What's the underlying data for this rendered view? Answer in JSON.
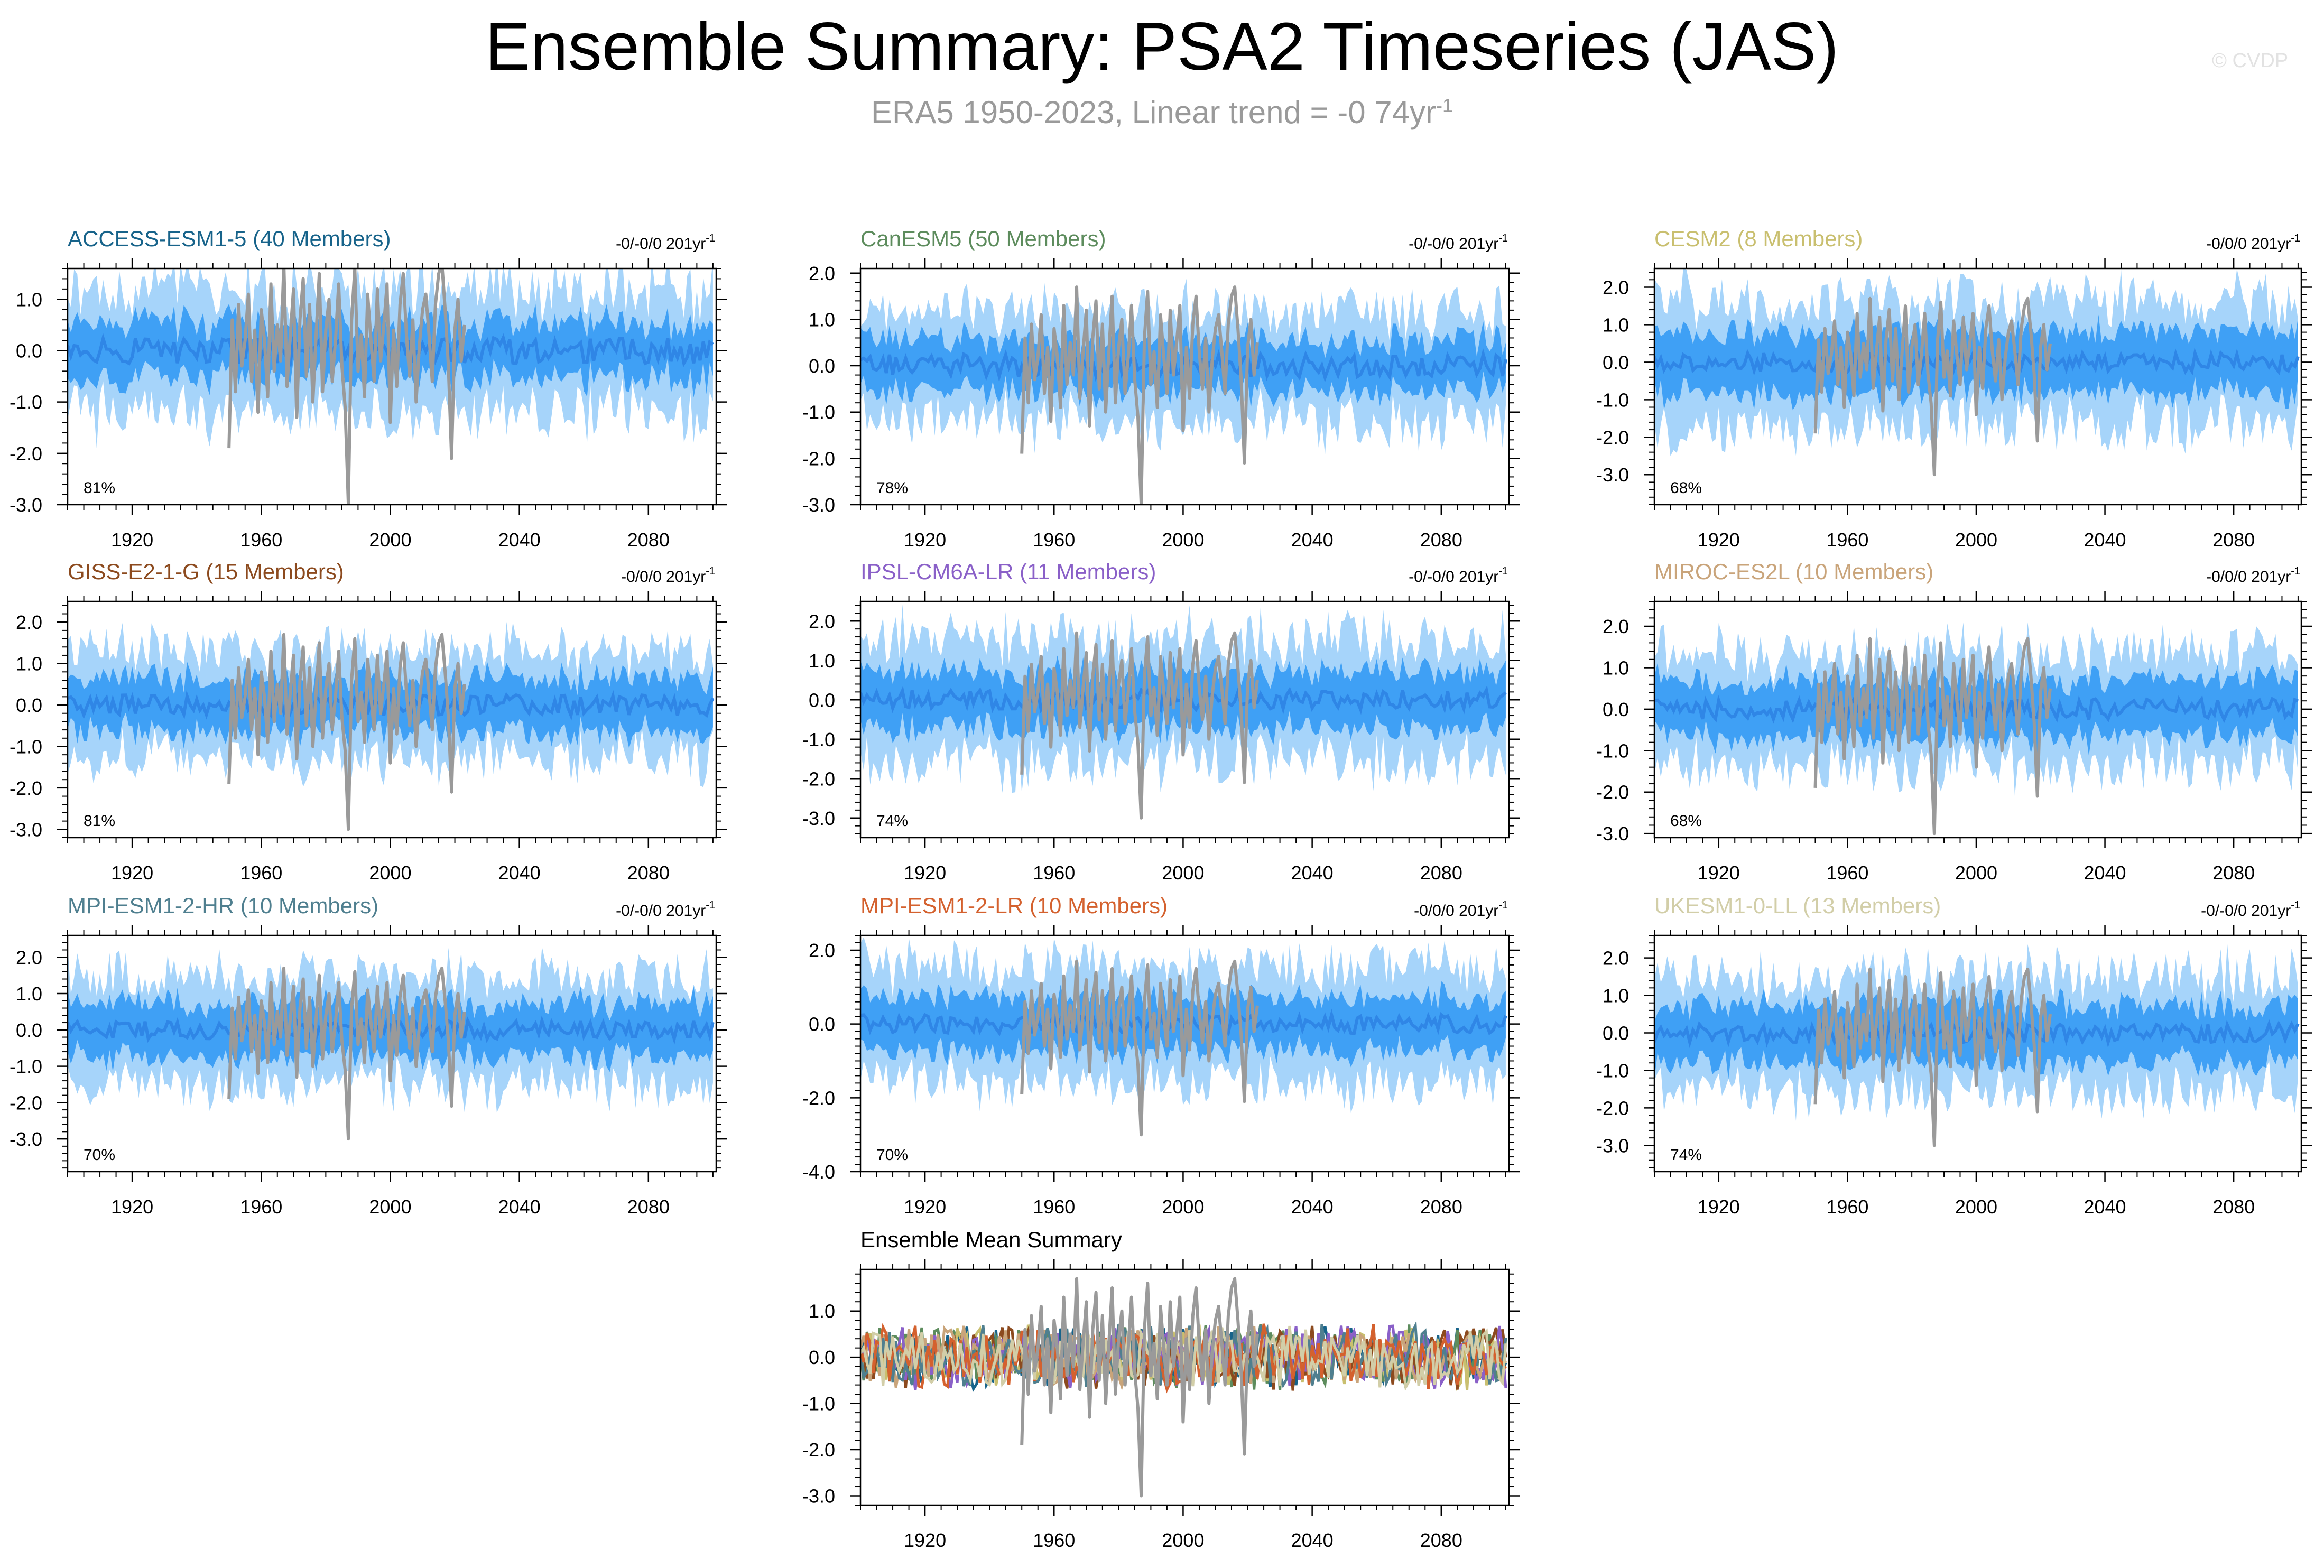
{
  "title": "Ensemble Summary: PSA2 Timeseries (JAS)",
  "subtitle": {
    "text": "ERA5 1950-2023, Linear trend = -0 74yr",
    "superscript": "-1"
  },
  "watermark": "© CVDP",
  "colors": {
    "outer_band": "#a6d4fa",
    "inner_band": "#3fa0f5",
    "ensemble_mean": "#2f86e6",
    "observations": "#9a9a9a",
    "frame": "#000000"
  },
  "chart_data": [
    {
      "type": "area",
      "title": "ACCESS-ESM1-5 (40 Members)",
      "title_color": "#17638a",
      "trend_text": "-0/-0/0 201yr",
      "trend_superscript": "-1",
      "percent_label": "81%",
      "xlim": [
        1900,
        2101
      ],
      "ylim": [
        -3.0,
        1.6
      ],
      "yticks": [
        "-3.0",
        "-2.0",
        "-1.0",
        "0.0",
        "1.0"
      ],
      "xticks": [
        "1920",
        "1960",
        "2000",
        "2040",
        "2080"
      ],
      "outer_half_width": 1.3,
      "inner_half_width": 0.6
    },
    {
      "type": "area",
      "title": "CanESM5 (50 Members)",
      "title_color": "#5d8c5d",
      "trend_text": "-0/-0/0 201yr",
      "trend_superscript": "-1",
      "percent_label": "78%",
      "xlim": [
        1900,
        2101
      ],
      "ylim": [
        -3.0,
        2.1
      ],
      "yticks": [
        "-3.0",
        "-2.0",
        "-1.0",
        "0.0",
        "1.0",
        "2.0"
      ],
      "xticks": [
        "1920",
        "1960",
        "2000",
        "2040",
        "2080"
      ],
      "outer_half_width": 1.3,
      "inner_half_width": 0.6
    },
    {
      "type": "area",
      "title": "CESM2 (8 Members)",
      "title_color": "#c9bf6f",
      "trend_text": "-0/0/0 201yr",
      "trend_superscript": "-1",
      "percent_label": "68%",
      "xlim": [
        1900,
        2101
      ],
      "ylim": [
        -3.8,
        2.5
      ],
      "yticks": [
        "-3.0",
        "-2.0",
        "-1.0",
        "0.0",
        "1.0",
        "2.0"
      ],
      "xticks": [
        "1920",
        "1960",
        "2000",
        "2040",
        "2080"
      ],
      "outer_half_width": 1.8,
      "inner_half_width": 0.9
    },
    {
      "type": "area",
      "title": "GISS-E2-1-G (15 Members)",
      "title_color": "#8c4a1e",
      "trend_text": "-0/0/0 201yr",
      "trend_superscript": "-1",
      "percent_label": "81%",
      "xlim": [
        1900,
        2101
      ],
      "ylim": [
        -3.2,
        2.5
      ],
      "yticks": [
        "-3.0",
        "-2.0",
        "-1.0",
        "0.0",
        "1.0",
        "2.0"
      ],
      "xticks": [
        "1920",
        "1960",
        "2000",
        "2040",
        "2080"
      ],
      "outer_half_width": 1.4,
      "inner_half_width": 0.7
    },
    {
      "type": "area",
      "title": "IPSL-CM6A-LR (11 Members)",
      "title_color": "#8a60c8",
      "trend_text": "-0/-0/0 201yr",
      "trend_superscript": "-1",
      "percent_label": "74%",
      "xlim": [
        1900,
        2101
      ],
      "ylim": [
        -3.5,
        2.5
      ],
      "yticks": [
        "-3.0",
        "-2.0",
        "-1.0",
        "0.0",
        "1.0",
        "2.0"
      ],
      "xticks": [
        "1920",
        "1960",
        "2000",
        "2040",
        "2080"
      ],
      "outer_half_width": 1.7,
      "inner_half_width": 0.8
    },
    {
      "type": "area",
      "title": "MIROC-ES2L (10 Members)",
      "title_color": "#c9a47a",
      "trend_text": "-0/0/0 201yr",
      "trend_superscript": "-1",
      "percent_label": "68%",
      "xlim": [
        1900,
        2101
      ],
      "ylim": [
        -3.1,
        2.6
      ],
      "yticks": [
        "-3.0",
        "-2.0",
        "-1.0",
        "0.0",
        "1.0",
        "2.0"
      ],
      "xticks": [
        "1920",
        "1960",
        "2000",
        "2040",
        "2080"
      ],
      "outer_half_width": 1.5,
      "inner_half_width": 0.75
    },
    {
      "type": "area",
      "title": "MPI-ESM1-2-HR (10 Members)",
      "title_color": "#4f7f8f",
      "trend_text": "-0/-0/0 201yr",
      "trend_superscript": "-1",
      "percent_label": "70%",
      "xlim": [
        1900,
        2101
      ],
      "ylim": [
        -3.9,
        2.6
      ],
      "yticks": [
        "-3.0",
        "-2.0",
        "-1.0",
        "0.0",
        "1.0",
        "2.0"
      ],
      "xticks": [
        "1920",
        "1960",
        "2000",
        "2040",
        "2080"
      ],
      "outer_half_width": 1.6,
      "inner_half_width": 0.8
    },
    {
      "type": "area",
      "title": "MPI-ESM1-2-LR (10 Members)",
      "title_color": "#d4612e",
      "trend_text": "-0/0/0 201yr",
      "trend_superscript": "-1",
      "percent_label": "70%",
      "xlim": [
        1900,
        2101
      ],
      "ylim": [
        -4.0,
        2.4
      ],
      "yticks": [
        "-4.0",
        "-2.0",
        "0.0",
        "2.0"
      ],
      "xticks": [
        "1920",
        "1960",
        "2000",
        "2040",
        "2080"
      ],
      "outer_half_width": 1.7,
      "inner_half_width": 0.8
    },
    {
      "type": "area",
      "title": "UKESM1-0-LL (13 Members)",
      "title_color": "#d2cea8",
      "trend_text": "-0/-0/0 201yr",
      "trend_superscript": "-1",
      "percent_label": "74%",
      "xlim": [
        1900,
        2101
      ],
      "ylim": [
        -3.7,
        2.6
      ],
      "yticks": [
        "-3.0",
        "-2.0",
        "-1.0",
        "0.0",
        "1.0",
        "2.0"
      ],
      "xticks": [
        "1920",
        "1960",
        "2000",
        "2040",
        "2080"
      ],
      "outer_half_width": 1.7,
      "inner_half_width": 0.85
    },
    {
      "type": "line",
      "title": "Ensemble Mean Summary",
      "title_color": "#000000",
      "xlim": [
        1900,
        2101
      ],
      "ylim": [
        -3.2,
        1.9
      ],
      "yticks": [
        "-3.0",
        "-2.0",
        "-1.0",
        "0.0",
        "1.0"
      ],
      "xticks": [
        "1920",
        "1960",
        "2000",
        "2040",
        "2080"
      ],
      "series": [
        {
          "name": "ACCESS-ESM1-5",
          "color": "#17638a"
        },
        {
          "name": "CanESM5",
          "color": "#5d8c5d"
        },
        {
          "name": "CESM2",
          "color": "#c9bf6f"
        },
        {
          "name": "GISS-E2-1-G",
          "color": "#8c4a1e"
        },
        {
          "name": "IPSL-CM6A-LR",
          "color": "#8a60c8"
        },
        {
          "name": "MIROC-ES2L",
          "color": "#c9a47a"
        },
        {
          "name": "MPI-ESM1-2-HR",
          "color": "#4f7f8f"
        },
        {
          "name": "MPI-ESM1-2-LR",
          "color": "#d4612e"
        },
        {
          "name": "UKESM1-0-LL",
          "color": "#d2cea8"
        }
      ]
    }
  ],
  "observations_era5": {
    "name": "ERA5",
    "years": [
      1950,
      1951,
      1952,
      1953,
      1954,
      1955,
      1956,
      1957,
      1958,
      1959,
      1960,
      1961,
      1962,
      1963,
      1964,
      1965,
      1966,
      1967,
      1968,
      1969,
      1970,
      1971,
      1972,
      1973,
      1974,
      1975,
      1976,
      1977,
      1978,
      1979,
      1980,
      1981,
      1982,
      1983,
      1984,
      1985,
      1986,
      1987,
      1988,
      1989,
      1990,
      1991,
      1992,
      1993,
      1994,
      1995,
      1996,
      1997,
      1998,
      1999,
      2000,
      2001,
      2002,
      2003,
      2004,
      2005,
      2006,
      2007,
      2008,
      2009,
      2010,
      2011,
      2012,
      2013,
      2014,
      2015,
      2016,
      2017,
      2018,
      2019,
      2020,
      2021,
      2022,
      2023
    ],
    "values": [
      -1.9,
      0.6,
      -0.8,
      0.9,
      -0.3,
      0.2,
      1.1,
      -0.6,
      0.4,
      -1.2,
      0.8,
      0.2,
      -0.9,
      1.3,
      -0.4,
      0.5,
      -0.2,
      1.7,
      -0.7,
      0.3,
      1.2,
      -1.3,
      0.6,
      1.4,
      -0.5,
      0.9,
      -1.0,
      0.3,
      1.5,
      -0.8,
      0.4,
      1.0,
      -0.6,
      0.2,
      1.3,
      -0.3,
      -1.1,
      -3.0,
      0.6,
      1.6,
      -0.4,
      0.3,
      -0.9,
      1.1,
      0.2,
      -0.6,
      1.2,
      -0.2,
      0.5,
      1.3,
      -1.4,
      0.4,
      -0.7,
      0.9,
      1.5,
      0.3,
      -0.5,
      0.6,
      -1.0,
      0.1,
      0.8,
      1.1,
      0.3,
      -0.6,
      0.9,
      1.5,
      1.7,
      0.8,
      -0.3,
      -2.1,
      0.4,
      1.0,
      -0.2,
      0.5
    ]
  }
}
